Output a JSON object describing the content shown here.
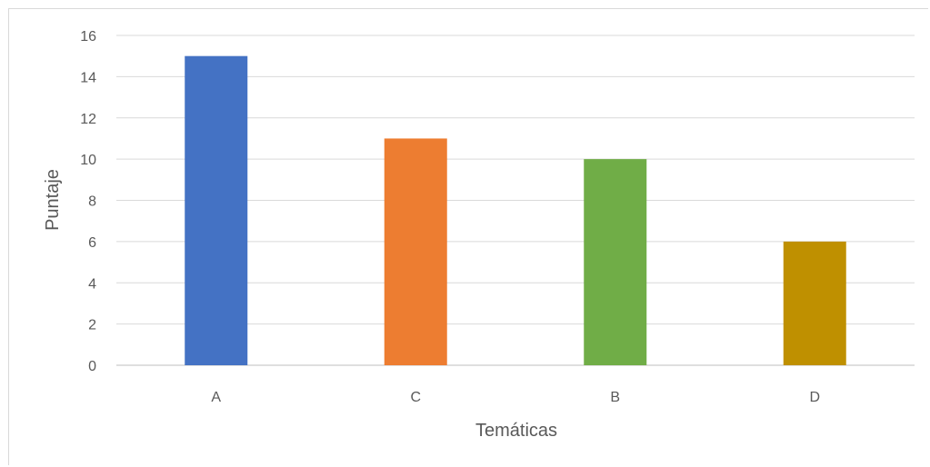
{
  "chart_data": {
    "type": "bar",
    "categories": [
      "A",
      "C",
      "B",
      "D"
    ],
    "values": [
      15,
      11,
      10,
      6
    ],
    "colors": [
      "#4472c4",
      "#ed7d31",
      "#70ad47",
      "#bf9000"
    ],
    "title": "",
    "xlabel": "Temáticas",
    "ylabel": "Puntaje",
    "ylim": [
      0,
      16
    ],
    "yticks": [
      0,
      2,
      4,
      6,
      8,
      10,
      12,
      14,
      16
    ],
    "grid": true,
    "legend": "none"
  }
}
